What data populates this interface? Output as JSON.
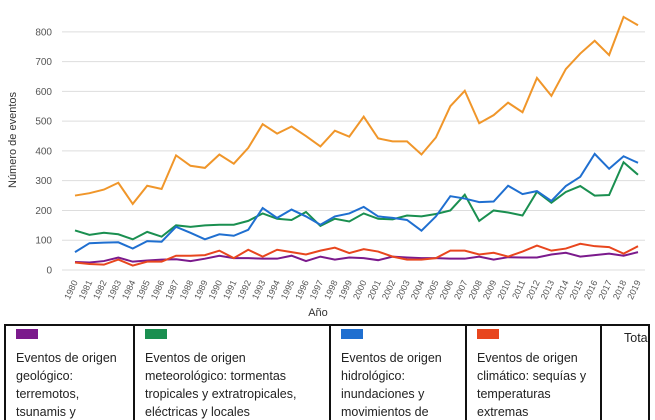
{
  "chart_data": {
    "type": "line",
    "x_label": "Año",
    "y_label": "Número de eventos",
    "x": [
      1980,
      1981,
      1982,
      1983,
      1984,
      1985,
      1986,
      1987,
      1988,
      1989,
      1990,
      1991,
      1992,
      1993,
      1994,
      1995,
      1996,
      1997,
      1998,
      1999,
      2000,
      2001,
      2002,
      2003,
      2004,
      2005,
      2006,
      2007,
      2008,
      2009,
      2010,
      2011,
      2012,
      2013,
      2014,
      2015,
      2016,
      2017,
      2018,
      2019
    ],
    "xlim": [
      1980,
      2019
    ],
    "ylim": [
      0,
      880
    ],
    "yticks": [
      0,
      100,
      200,
      300,
      400,
      500,
      600,
      700,
      800
    ],
    "grid": true,
    "series": [
      {
        "name": "Eventos de origen geológico: terremotos, tsunamis y actividad volcánica",
        "color": "#7b1a8c",
        "values": [
          27,
          25,
          30,
          42,
          28,
          32,
          35,
          36,
          30,
          38,
          48,
          40,
          40,
          38,
          38,
          48,
          30,
          45,
          35,
          42,
          40,
          33,
          45,
          42,
          40,
          40,
          38,
          38,
          45,
          35,
          43,
          42,
          42,
          52,
          58,
          45,
          50,
          55,
          48,
          60
        ]
      },
      {
        "name": "Eventos de origen meteorológico: tormentas tropicales y extratropicales, eléctricas y locales",
        "color": "#1a8f50",
        "values": [
          133,
          118,
          125,
          120,
          103,
          128,
          112,
          150,
          145,
          150,
          152,
          152,
          165,
          190,
          172,
          168,
          195,
          148,
          172,
          163,
          190,
          172,
          170,
          183,
          180,
          188,
          200,
          253,
          165,
          200,
          193,
          183,
          263,
          226,
          262,
          282,
          250,
          252,
          362,
          320
        ]
      },
      {
        "name": "Eventos de origen hidrológico: inundaciones y movimientos de masa",
        "color": "#1f6fd0",
        "values": [
          60,
          90,
          92,
          93,
          72,
          97,
          95,
          145,
          125,
          103,
          120,
          115,
          135,
          208,
          175,
          203,
          180,
          152,
          180,
          190,
          212,
          180,
          175,
          168,
          132,
          180,
          248,
          240,
          228,
          230,
          283,
          255,
          265,
          232,
          282,
          313,
          390,
          340,
          382,
          360
        ]
      },
      {
        "name": "Eventos de origen climático: sequías y temperaturas extremas",
        "color": "#e8461e",
        "values": [
          25,
          20,
          18,
          35,
          15,
          28,
          28,
          48,
          48,
          50,
          65,
          40,
          68,
          45,
          68,
          60,
          52,
          65,
          75,
          57,
          70,
          62,
          45,
          35,
          35,
          40,
          65,
          65,
          52,
          58,
          45,
          62,
          82,
          65,
          72,
          88,
          80,
          77,
          55,
          80
        ]
      },
      {
        "name": "Total",
        "color": "#f0962a",
        "values": [
          250,
          258,
          270,
          293,
          222,
          283,
          272,
          385,
          350,
          343,
          388,
          357,
          410,
          490,
          458,
          482,
          450,
          415,
          468,
          448,
          515,
          442,
          432,
          432,
          388,
          445,
          550,
          602,
          493,
          520,
          562,
          530,
          645,
          585,
          675,
          727,
          770,
          722,
          850,
          822
        ]
      }
    ]
  }
}
